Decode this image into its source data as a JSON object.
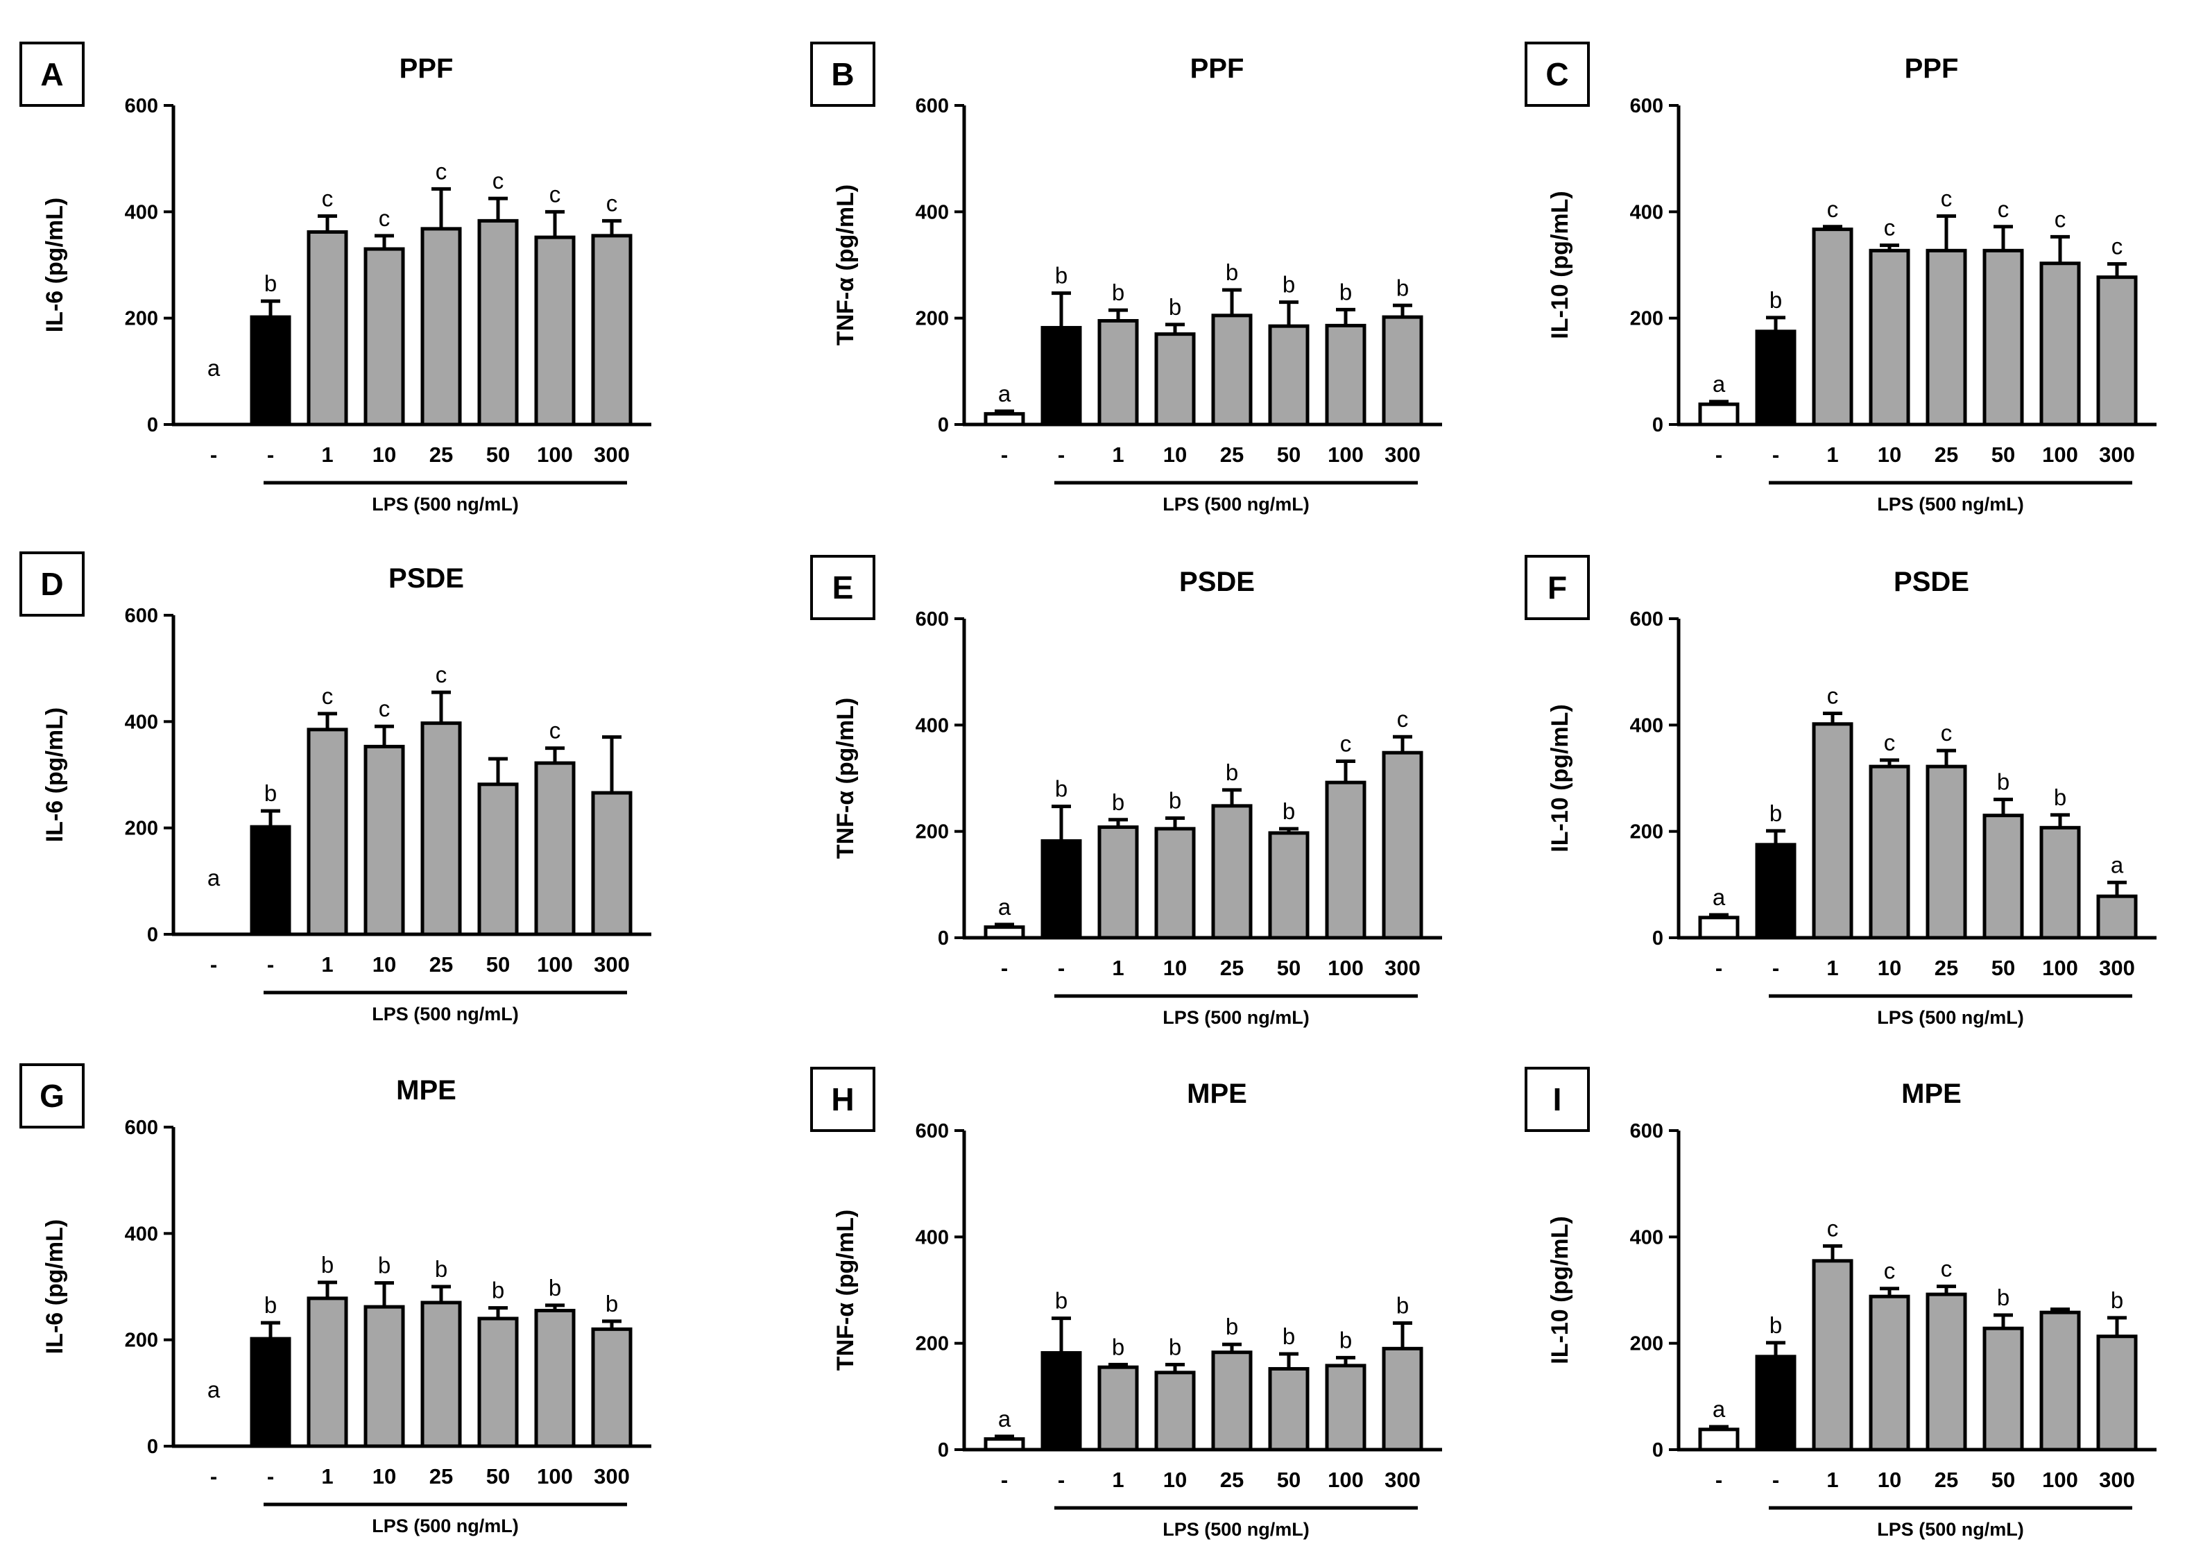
{
  "colors": {
    "control": "#ffffff",
    "lps": "#000000",
    "treated": "#a6a6a6"
  },
  "lps_label": "LPS (500 ng/mL)",
  "categories": [
    "-",
    "-",
    "1",
    "10",
    "25",
    "50",
    "100",
    "300"
  ],
  "chart_data": [
    {
      "id": "A",
      "type": "bar",
      "title": "PPF",
      "ylabel": "IL-6 (pg/mL)",
      "ylim": [
        0,
        600
      ],
      "yticks": [
        0,
        200,
        400,
        600
      ],
      "categories": [
        "-",
        "-",
        "1",
        "10",
        "25",
        "50",
        "100",
        "300"
      ],
      "values": [
        0,
        202,
        362,
        330,
        368,
        383,
        352,
        355
      ],
      "errors": [
        0,
        30,
        30,
        25,
        75,
        42,
        48,
        28
      ],
      "labels": [
        "a",
        "b",
        "c",
        "c",
        "c",
        "c",
        "c",
        "c"
      ]
    },
    {
      "id": "B",
      "type": "bar",
      "title": "PPF",
      "ylabel": "TNF-α (pg/mL)",
      "ylim": [
        0,
        600
      ],
      "yticks": [
        0,
        200,
        400,
        600
      ],
      "categories": [
        "-",
        "-",
        "1",
        "10",
        "25",
        "50",
        "100",
        "300"
      ],
      "values": [
        20,
        182,
        195,
        170,
        205,
        185,
        186,
        202
      ],
      "errors": [
        5,
        65,
        20,
        18,
        48,
        45,
        30,
        22
      ],
      "labels": [
        "a",
        "b",
        "b",
        "b",
        "b",
        "b",
        "b",
        "b"
      ]
    },
    {
      "id": "C",
      "type": "bar",
      "title": "PPF",
      "ylabel": "IL-10 (pg/mL)",
      "ylim": [
        0,
        600
      ],
      "yticks": [
        0,
        200,
        400,
        600
      ],
      "categories": [
        "-",
        "-",
        "1",
        "10",
        "25",
        "50",
        "100",
        "300"
      ],
      "values": [
        38,
        175,
        367,
        327,
        327,
        327,
        303,
        277
      ],
      "errors": [
        5,
        26,
        5,
        10,
        65,
        45,
        50,
        25
      ],
      "labels": [
        "a",
        "b",
        "c",
        "c",
        "c",
        "c",
        "c",
        "c"
      ]
    },
    {
      "id": "D",
      "type": "bar",
      "title": "PSDE",
      "ylabel": "IL-6 (pg/mL)",
      "ylim": [
        0,
        600
      ],
      "yticks": [
        0,
        200,
        400,
        600
      ],
      "categories": [
        "-",
        "-",
        "1",
        "10",
        "25",
        "50",
        "100",
        "300"
      ],
      "values": [
        0,
        202,
        385,
        353,
        397,
        282,
        322,
        266
      ],
      "errors": [
        0,
        30,
        30,
        38,
        58,
        48,
        28,
        105
      ],
      "labels": [
        "a",
        "b",
        "c",
        "c",
        "c",
        "",
        "c",
        ""
      ]
    },
    {
      "id": "E",
      "type": "bar",
      "title": "PSDE",
      "ylabel": "TNF-α (pg/mL)",
      "ylim": [
        0,
        600
      ],
      "yticks": [
        0,
        200,
        400,
        600
      ],
      "categories": [
        "-",
        "-",
        "1",
        "10",
        "25",
        "50",
        "100",
        "300"
      ],
      "values": [
        20,
        182,
        208,
        205,
        248,
        197,
        292,
        348
      ],
      "errors": [
        5,
        65,
        14,
        20,
        30,
        8,
        40,
        30
      ],
      "labels": [
        "a",
        "b",
        "b",
        "b",
        "b",
        "b",
        "c",
        "c"
      ]
    },
    {
      "id": "F",
      "type": "bar",
      "title": "PSDE",
      "ylabel": "IL-10 (pg/mL)",
      "ylim": [
        0,
        600
      ],
      "yticks": [
        0,
        200,
        400,
        600
      ],
      "categories": [
        "-",
        "-",
        "1",
        "10",
        "25",
        "50",
        "100",
        "300"
      ],
      "values": [
        38,
        175,
        402,
        322,
        322,
        230,
        207,
        78
      ],
      "errors": [
        5,
        26,
        20,
        12,
        30,
        30,
        24,
        26
      ],
      "labels": [
        "a",
        "b",
        "c",
        "c",
        "c",
        "b",
        "b",
        "a"
      ]
    },
    {
      "id": "G",
      "type": "bar",
      "title": "MPE",
      "ylabel": "IL-6 (pg/mL)",
      "ylim": [
        0,
        600
      ],
      "yticks": [
        0,
        200,
        400,
        600
      ],
      "categories": [
        "-",
        "-",
        "1",
        "10",
        "25",
        "50",
        "100",
        "300"
      ],
      "values": [
        0,
        202,
        278,
        262,
        270,
        240,
        255,
        220
      ],
      "errors": [
        0,
        30,
        30,
        45,
        30,
        20,
        10,
        15
      ],
      "labels": [
        "a",
        "b",
        "b",
        "b",
        "b",
        "b",
        "b",
        "b"
      ]
    },
    {
      "id": "H",
      "type": "bar",
      "title": "MPE",
      "ylabel": "TNF-α (pg/mL)",
      "ylim": [
        0,
        600
      ],
      "yticks": [
        0,
        200,
        400,
        600
      ],
      "categories": [
        "-",
        "-",
        "1",
        "10",
        "25",
        "50",
        "100",
        "300"
      ],
      "values": [
        20,
        182,
        155,
        145,
        183,
        152,
        158,
        190
      ],
      "errors": [
        5,
        65,
        5,
        15,
        15,
        28,
        15,
        48
      ],
      "labels": [
        "a",
        "b",
        "b",
        "b",
        "b",
        "b",
        "b",
        "b"
      ]
    },
    {
      "id": "I",
      "type": "bar",
      "title": "MPE",
      "ylabel": "IL-10 (pg/mL)",
      "ylim": [
        0,
        600
      ],
      "yticks": [
        0,
        200,
        400,
        600
      ],
      "categories": [
        "-",
        "-",
        "1",
        "10",
        "25",
        "50",
        "100",
        "300"
      ],
      "values": [
        38,
        175,
        355,
        288,
        292,
        228,
        258,
        213
      ],
      "errors": [
        5,
        26,
        28,
        15,
        15,
        25,
        6,
        35
      ],
      "labels": [
        "a",
        "b",
        "c",
        "c",
        "c",
        "b",
        "",
        "b"
      ]
    }
  ]
}
